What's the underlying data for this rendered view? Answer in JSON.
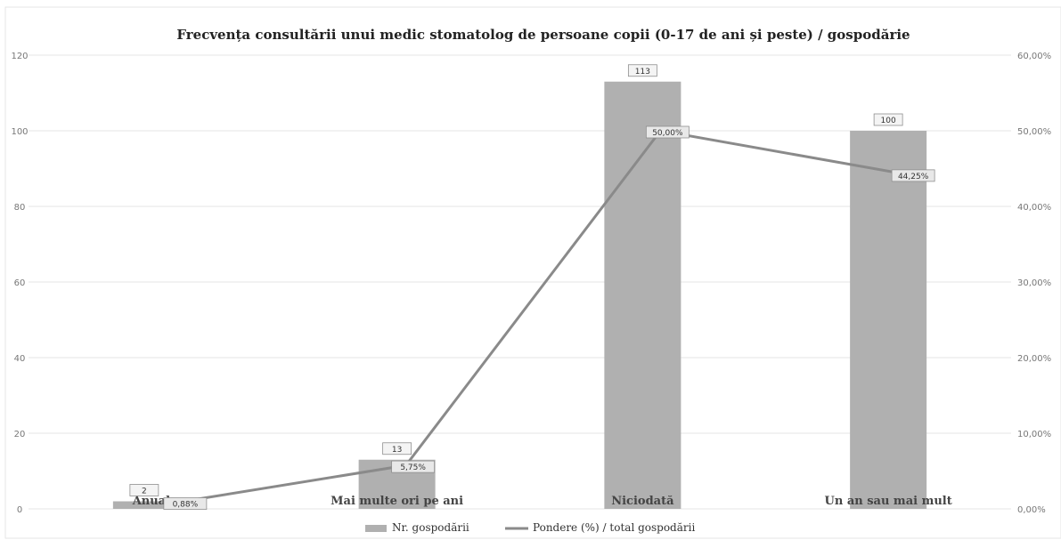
{
  "chart_data": {
    "type": "bar",
    "title": "Frecvența consultării unui medic stomatolog de persoane copii (0-17 de ani și peste) / gospodărie",
    "categories": [
      "Anual",
      "Mai multe ori pe ani",
      "Niciodată",
      "Un an sau mai mult"
    ],
    "series": [
      {
        "name": "Nr. gospodării",
        "type": "bar",
        "axis": "left",
        "values": [
          2,
          13,
          113,
          100
        ],
        "data_labels": [
          "2",
          "13",
          "113",
          "100"
        ]
      },
      {
        "name": "Pondere (%) / total gospodării",
        "type": "line",
        "axis": "right",
        "values": [
          0.88,
          5.75,
          50.0,
          44.25
        ],
        "data_labels": [
          "0,88%",
          "5,75%",
          "50,00%",
          "44,25%"
        ]
      }
    ],
    "y_left": {
      "ylim": [
        0,
        120
      ],
      "ticks": [
        "0",
        "20",
        "40",
        "60",
        "80",
        "100",
        "120"
      ],
      "tick_values": [
        0,
        20,
        40,
        60,
        80,
        100,
        120
      ]
    },
    "y_right": {
      "ylim": [
        0,
        60
      ],
      "ticks": [
        "0,00%",
        "10,00%",
        "20,00%",
        "30,00%",
        "40,00%",
        "50,00%",
        "60,00%"
      ],
      "tick_values": [
        0,
        10,
        20,
        30,
        40,
        50,
        60
      ]
    },
    "grid": true,
    "legend_position": "bottom",
    "colors": {
      "bar": "#b0b0b0",
      "line": "#8a8a8a",
      "grid": "#e4e4e4",
      "text": "#444444"
    }
  }
}
